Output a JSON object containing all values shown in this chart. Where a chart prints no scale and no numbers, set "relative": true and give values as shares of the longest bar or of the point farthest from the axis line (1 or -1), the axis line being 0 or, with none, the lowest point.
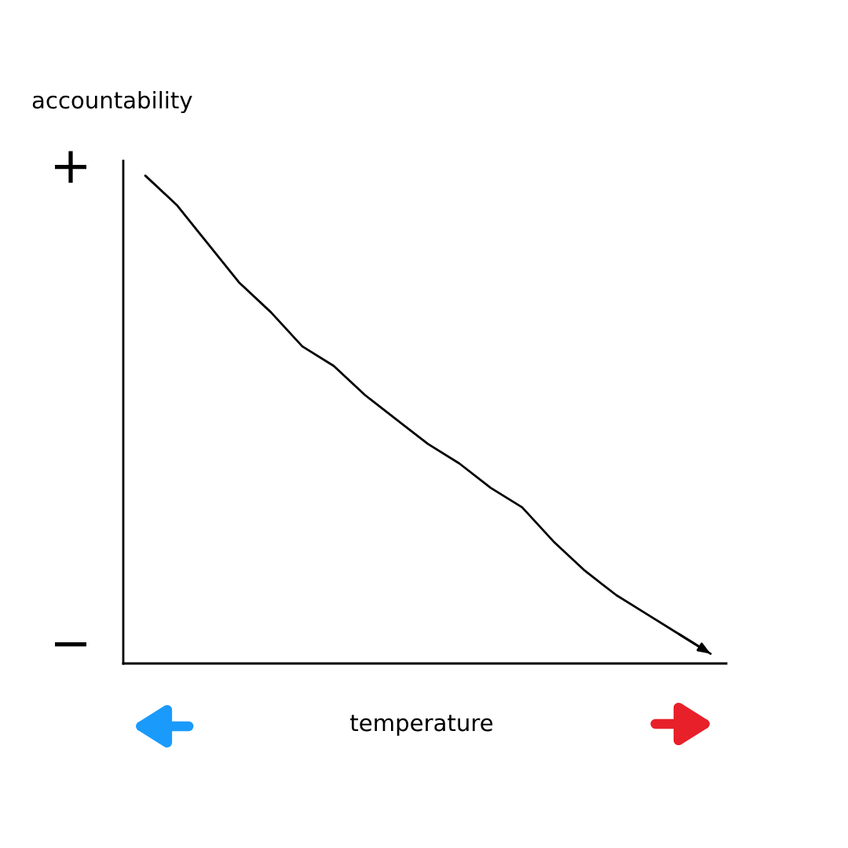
{
  "chart_data": {
    "type": "line",
    "relative": true,
    "xlabel": "temperature",
    "ylabel": "accountability",
    "annotations": [
      "+",
      "−"
    ],
    "categories": [
      null,
      null,
      null,
      null,
      null,
      null,
      null,
      null,
      null,
      null,
      null,
      null,
      null,
      null,
      null,
      null,
      null,
      null,
      null
    ],
    "series": [
      {
        "color": "#000000",
        "values": [
          1.0,
          0.94,
          0.86,
          0.78,
          0.72,
          0.65,
          0.61,
          0.55,
          0.5,
          0.45,
          0.41,
          0.36,
          0.32,
          0.25,
          0.19,
          0.14,
          0.1,
          0.06,
          0.02
        ]
      }
    ]
  }
}
